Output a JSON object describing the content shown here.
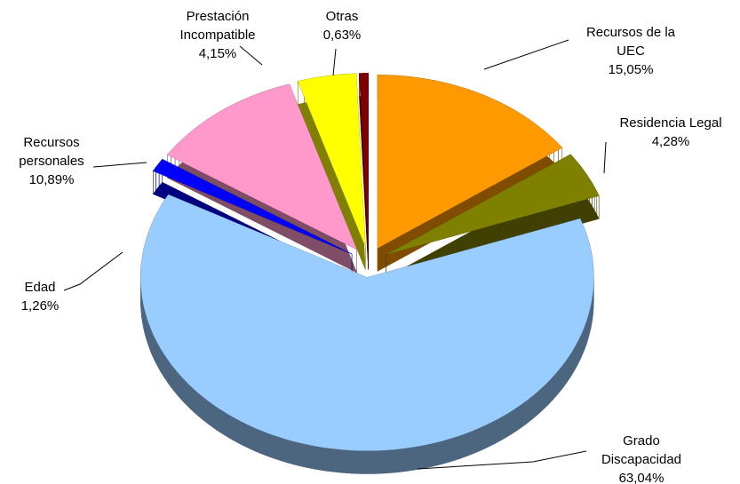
{
  "chart_data": {
    "type": "pie",
    "categories": [
      "Recursos de la UEC",
      "Residencia Legal",
      "Grado Discapacidad",
      "Edad",
      "Recursos personales",
      "Prestación Incompatible",
      "Otras"
    ],
    "values": [
      15.05,
      4.28,
      63.04,
      1.26,
      10.89,
      4.15,
      0.63
    ],
    "value_labels": [
      "15,05%",
      "4,28%",
      "63,04%",
      "1,26%",
      "10,89%",
      "4,15%",
      "0,63%"
    ],
    "colors": [
      "#ff9900",
      "#808000",
      "#99ccff",
      "#0000ff",
      "#ff99cc",
      "#ffff00",
      "#800000"
    ]
  }
}
